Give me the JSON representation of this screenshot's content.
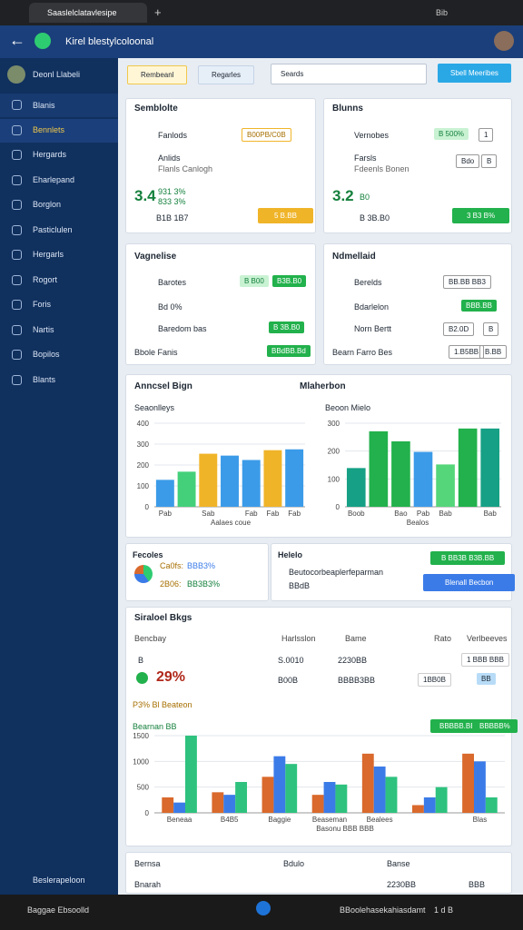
{
  "browser": {
    "tab_title": "Saaslelclatavlesipe",
    "new_tab": "+",
    "tab_extra": "Bib"
  },
  "header": {
    "title": "Kirel blestylcoloonal"
  },
  "sidebar": {
    "user": "Deonl Llabeli",
    "items": [
      "Blanis",
      "Bennlets",
      "Hergards",
      "Eharlepand",
      "Borglon",
      "Pasticlulen",
      "Hergarls",
      "Rogort",
      "Foris",
      "Nartis",
      "Bopilos",
      "Blants"
    ],
    "footer": "Beslerapeloon"
  },
  "toolbar": {
    "button_1": "Rembeanl",
    "button_2": "Regarles",
    "search": "Seards",
    "button_3": "Sbell Meeribes"
  },
  "cards": [
    {
      "title": "Semblolte",
      "rows": [
        "Fanlods",
        "Anlids",
        "Flanls Canlogh",
        "B1B 1B7"
      ],
      "pill": "B00PB/C0B",
      "big": "3.4",
      "sub_1": "931 3%",
      "sub_2": "833 3%",
      "button": "5 B.BB"
    },
    {
      "title": "Blunns",
      "rows": [
        "Vernobes",
        "Farsls",
        "Fdeenls Bonen",
        "B 3B.B0"
      ],
      "pill": "B 500%",
      "box": "1",
      "box_2": "Bdo",
      "box_3": "B",
      "big": "3.2",
      "sub_1": "B0",
      "button": "3 B3 B%"
    },
    {
      "title": "Vagnelise",
      "rows": [
        "Barotes",
        "Bd 0%",
        "Baredom bas",
        "Bbole Fanis"
      ],
      "pill": "B B00",
      "pill_2": "B3B.B0",
      "button": "B 3B.B0",
      "button_2": "BBdBB.Bd"
    },
    {
      "title": "Ndmellaid",
      "rows": [
        "Berelds",
        "Bdarlelon",
        "Norn Bertt",
        "Bearn Farro Bes"
      ],
      "box": "BB.BB BB3",
      "button": "BBB.BB",
      "box_2": "B2.0D",
      "box_3": "B",
      "box_4": "1.B5BB",
      "box_5": "B.BB"
    }
  ],
  "charts_panel": {
    "title": "Anncsel Bign",
    "title_2": "Mlaherbon"
  },
  "charts": [
    {
      "type": "bar",
      "title": "Seaonlleys",
      "x_label": "Aalaes coue",
      "categories": [
        "Pab",
        null,
        "Sab",
        null,
        "Fab",
        "Fab",
        "Fab"
      ],
      "values": [
        129,
        168,
        254,
        245,
        224,
        271,
        275
      ],
      "colors": [
        "#3b9be8",
        "#44d07a",
        "#f0b429",
        "#3b9be8",
        "#3b9be8",
        "#f0b429",
        "#3b9be8"
      ],
      "ylim": [
        0,
        400
      ],
      "yticks": [
        0,
        100,
        200,
        300,
        400
      ]
    },
    {
      "type": "bar",
      "title": "Beoon Mielo",
      "x_label": "Bealos",
      "categories": [
        "Boob",
        null,
        "Bao",
        "Pab",
        "Bab",
        null,
        "Bab"
      ],
      "values": [
        139,
        271,
        235,
        197,
        152,
        281,
        281
      ],
      "colors": [
        "#16a085",
        "#22b14c",
        "#22b14c",
        "#3b9be8",
        "#55d67a",
        "#22b14c",
        "#16a085"
      ],
      "ylim": [
        0,
        300
      ],
      "yticks": [
        0,
        100,
        200,
        300
      ]
    },
    {
      "type": "grouped_bar",
      "title": "Bearnan BB",
      "x_label": "Basonu BBB BBB",
      "categories": [
        "Beneaa",
        "B4B5",
        "Baggie",
        "Beaseman",
        "Bealees",
        null,
        "Blas"
      ],
      "series": [
        {
          "name": "A",
          "color": "#d9692c",
          "values": [
            300,
            400,
            700,
            350,
            1150,
            150,
            1150
          ]
        },
        {
          "name": "B",
          "color": "#3b7be8",
          "values": [
            200,
            350,
            1100,
            600,
            900,
            300,
            1000
          ]
        },
        {
          "name": "C",
          "color": "#2ec27e",
          "values": [
            1500,
            600,
            950,
            550,
            700,
            500,
            300
          ]
        }
      ],
      "ylim": [
        0,
        1500
      ],
      "yticks": [
        0,
        500,
        1000,
        1500
      ]
    }
  ],
  "small_cards": [
    {
      "title": "Fecoles",
      "line_1": "Ca0fs:",
      "value_1": "BBB3%",
      "line_2": "2B06:",
      "value_2": "BB3B3%"
    },
    {
      "title": "Helelo",
      "line_1": "Beutocorbeaplerfeparman",
      "line_2": "BBdB",
      "button": "B BB3B B3B.BB",
      "button_2": "Blenall Becbon"
    }
  ],
  "stats": {
    "title": "Siraloel Bkgs",
    "headers": [
      "Bencbay",
      "Harlsslon",
      "Bame",
      "Rato",
      "Verlbeeves"
    ],
    "row_1": [
      "B",
      "S.0010",
      "2230BB",
      "1 BBB BBB"
    ],
    "row_2": [
      "29%",
      "B00B",
      "BBBB3BB",
      "1BB0B",
      "BB"
    ],
    "section": "P3% Bl Beateon",
    "button": "BBBBB.BB%",
    "button_2": "BBBBB%"
  },
  "bottom": {
    "headers": [
      "Bernsa",
      "Bdulo",
      "Banse"
    ],
    "row": [
      "Bnarah",
      "2230BB",
      "BBB"
    ]
  },
  "taskbar": {
    "left": "Baggae Ebsoolld",
    "right": "BBoolehasekahiasdamt",
    "tray": "1 d B"
  }
}
